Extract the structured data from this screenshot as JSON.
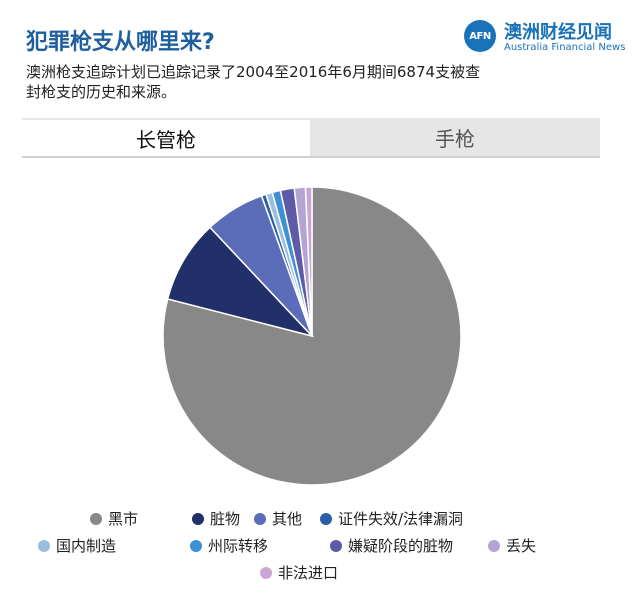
{
  "header": {
    "title": "犯罪枪支从哪里来?",
    "subtitle": "澳洲枪支追踪计划已追踪记录了2004至2016年6月期间6874支被查封枪支的历史和来源。"
  },
  "brand": {
    "logo_text": "AFN",
    "name_cn": "澳洲财经见闻",
    "name_en": "Australia Financial News"
  },
  "tabs": [
    {
      "label": "长管枪",
      "active": true
    },
    {
      "label": "手枪",
      "active": false
    }
  ],
  "chart_data": {
    "type": "pie",
    "slices": [
      {
        "label": "黑市",
        "value": 79.0,
        "color": "#888888"
      },
      {
        "label": "脏物",
        "value": 9.0,
        "color": "#22306a"
      },
      {
        "label": "其他",
        "value": 6.5,
        "color": "#5b6cb8"
      },
      {
        "label": "证件失效/法律漏洞",
        "value": 0.5,
        "color": "#2a5fa8"
      },
      {
        "label": "国内制造",
        "value": 0.7,
        "color": "#9bbde0"
      },
      {
        "label": "州际转移",
        "value": 0.9,
        "color": "#3d8fd6"
      },
      {
        "label": "嫌疑阶段的脏物",
        "value": 1.5,
        "color": "#5f5aa8"
      },
      {
        "label": "丢失",
        "value": 1.2,
        "color": "#b3a4d4"
      },
      {
        "label": "非法进口",
        "value": 0.7,
        "color": "#c9a6d6"
      }
    ]
  }
}
